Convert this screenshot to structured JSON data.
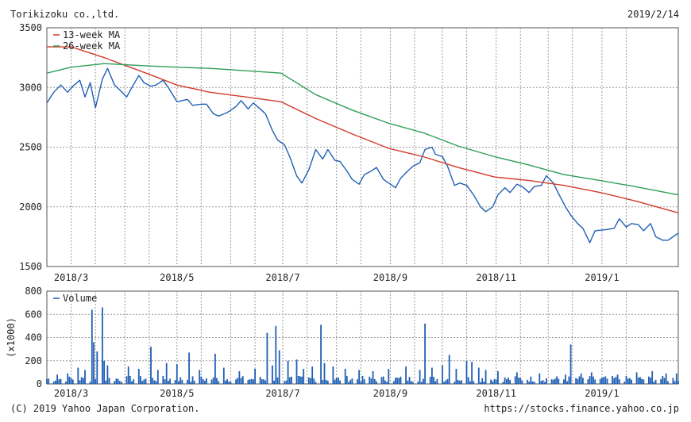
{
  "header": {
    "company": "Torikizoku co.,ltd.",
    "date": "2019/2/14"
  },
  "footer": {
    "copyright": "(C) 2019 Yahoo Japan Corporation.",
    "url": "https://stocks.finance.yahoo.co.jp"
  },
  "colors": {
    "price": "#1f5fb4",
    "ma13": "#d23a2a",
    "ma26": "#2e9e56",
    "volume": "#1f5fb4",
    "grid": "#9a9a9a",
    "frame": "#555555"
  },
  "chart_data": [
    {
      "type": "line",
      "title": "",
      "ylim": [
        1500,
        3500
      ],
      "yticks": [
        1500,
        2000,
        2500,
        3000,
        3500
      ],
      "xlim": [
        "2018-02-15",
        "2019-02-14"
      ],
      "xticks": [
        {
          "date": "2018-03-01",
          "label": "2018/3"
        },
        {
          "date": "2018-05-01",
          "label": "2018/5"
        },
        {
          "date": "2018-07-01",
          "label": "2018/7"
        },
        {
          "date": "2018-09-01",
          "label": "2018/9"
        },
        {
          "date": "2018-11-01",
          "label": "2018/11"
        },
        {
          "date": "2019-01-01",
          "label": "2019/1"
        }
      ],
      "grid": true,
      "legend": "top-left",
      "series": [
        {
          "name": "",
          "key": "price",
          "points": [
            [
              "2018-02-15",
              2870
            ],
            [
              "2018-02-19",
              2960
            ],
            [
              "2018-02-23",
              3020
            ],
            [
              "2018-02-27",
              2960
            ],
            [
              "2018-03-02",
              3010
            ],
            [
              "2018-03-06",
              3060
            ],
            [
              "2018-03-09",
              2920
            ],
            [
              "2018-03-12",
              3040
            ],
            [
              "2018-03-15",
              2830
            ],
            [
              "2018-03-19",
              3070
            ],
            [
              "2018-03-22",
              3160
            ],
            [
              "2018-03-26",
              3020
            ],
            [
              "2018-03-29",
              2980
            ],
            [
              "2018-04-02",
              2920
            ],
            [
              "2018-04-05",
              3000
            ],
            [
              "2018-04-09",
              3100
            ],
            [
              "2018-04-12",
              3040
            ],
            [
              "2018-04-16",
              3010
            ],
            [
              "2018-04-19",
              3020
            ],
            [
              "2018-04-23",
              3060
            ],
            [
              "2018-04-26",
              3000
            ],
            [
              "2018-05-01",
              2880
            ],
            [
              "2018-05-07",
              2900
            ],
            [
              "2018-05-10",
              2850
            ],
            [
              "2018-05-15",
              2860
            ],
            [
              "2018-05-18",
              2860
            ],
            [
              "2018-05-22",
              2780
            ],
            [
              "2018-05-25",
              2760
            ],
            [
              "2018-05-30",
              2790
            ],
            [
              "2018-06-04",
              2840
            ],
            [
              "2018-06-07",
              2890
            ],
            [
              "2018-06-11",
              2820
            ],
            [
              "2018-06-14",
              2870
            ],
            [
              "2018-06-18",
              2820
            ],
            [
              "2018-06-21",
              2780
            ],
            [
              "2018-06-25",
              2640
            ],
            [
              "2018-06-28",
              2560
            ],
            [
              "2018-07-02",
              2520
            ],
            [
              "2018-07-05",
              2420
            ],
            [
              "2018-07-09",
              2260
            ],
            [
              "2018-07-12",
              2200
            ],
            [
              "2018-07-16",
              2310
            ],
            [
              "2018-07-20",
              2480
            ],
            [
              "2018-07-24",
              2400
            ],
            [
              "2018-07-27",
              2480
            ],
            [
              "2018-07-31",
              2390
            ],
            [
              "2018-08-03",
              2380
            ],
            [
              "2018-08-07",
              2300
            ],
            [
              "2018-08-10",
              2230
            ],
            [
              "2018-08-14",
              2190
            ],
            [
              "2018-08-17",
              2270
            ],
            [
              "2018-08-21",
              2300
            ],
            [
              "2018-08-24",
              2330
            ],
            [
              "2018-08-28",
              2230
            ],
            [
              "2018-08-31",
              2200
            ],
            [
              "2018-09-04",
              2160
            ],
            [
              "2018-09-07",
              2240
            ],
            [
              "2018-09-11",
              2300
            ],
            [
              "2018-09-14",
              2340
            ],
            [
              "2018-09-18",
              2370
            ],
            [
              "2018-09-21",
              2480
            ],
            [
              "2018-09-25",
              2500
            ],
            [
              "2018-09-27",
              2440
            ],
            [
              "2018-10-01",
              2420
            ],
            [
              "2018-10-04",
              2340
            ],
            [
              "2018-10-08",
              2180
            ],
            [
              "2018-10-11",
              2200
            ],
            [
              "2018-10-15",
              2180
            ],
            [
              "2018-10-19",
              2100
            ],
            [
              "2018-10-23",
              2000
            ],
            [
              "2018-10-26",
              1960
            ],
            [
              "2018-10-30",
              2000
            ],
            [
              "2018-11-02",
              2100
            ],
            [
              "2018-11-06",
              2160
            ],
            [
              "2018-11-09",
              2120
            ],
            [
              "2018-11-13",
              2190
            ],
            [
              "2018-11-16",
              2170
            ],
            [
              "2018-11-20",
              2120
            ],
            [
              "2018-11-23",
              2170
            ],
            [
              "2018-11-27",
              2180
            ],
            [
              "2018-11-30",
              2260
            ],
            [
              "2018-12-04",
              2200
            ],
            [
              "2018-12-07",
              2110
            ],
            [
              "2018-12-11",
              2000
            ],
            [
              "2018-12-14",
              1930
            ],
            [
              "2018-12-18",
              1860
            ],
            [
              "2018-12-21",
              1820
            ],
            [
              "2018-12-25",
              1700
            ],
            [
              "2018-12-28",
              1800
            ],
            [
              "2019-01-04",
              1810
            ],
            [
              "2019-01-08",
              1820
            ],
            [
              "2019-01-11",
              1900
            ],
            [
              "2019-01-15",
              1830
            ],
            [
              "2019-01-18",
              1860
            ],
            [
              "2019-01-22",
              1850
            ],
            [
              "2019-01-25",
              1800
            ],
            [
              "2019-01-29",
              1860
            ],
            [
              "2019-02-01",
              1750
            ],
            [
              "2019-02-05",
              1720
            ],
            [
              "2019-02-08",
              1720
            ],
            [
              "2019-02-12",
              1760
            ],
            [
              "2019-02-14",
              1780
            ]
          ]
        },
        {
          "name": "13-week MA",
          "key": "ma13",
          "points": [
            [
              "2018-02-15",
              3340
            ],
            [
              "2018-03-01",
              3340
            ],
            [
              "2018-03-20",
              3250
            ],
            [
              "2018-04-15",
              3110
            ],
            [
              "2018-05-01",
              3020
            ],
            [
              "2018-05-20",
              2960
            ],
            [
              "2018-06-10",
              2920
            ],
            [
              "2018-06-30",
              2880
            ],
            [
              "2018-07-20",
              2740
            ],
            [
              "2018-08-10",
              2610
            ],
            [
              "2018-08-31",
              2490
            ],
            [
              "2018-09-20",
              2420
            ],
            [
              "2018-10-10",
              2330
            ],
            [
              "2018-10-31",
              2250
            ],
            [
              "2018-11-20",
              2220
            ],
            [
              "2018-12-10",
              2180
            ],
            [
              "2018-12-31",
              2120
            ],
            [
              "2019-01-20",
              2050
            ],
            [
              "2019-02-14",
              1950
            ]
          ]
        },
        {
          "name": "26-week MA",
          "key": "ma26",
          "points": [
            [
              "2018-02-15",
              3120
            ],
            [
              "2018-03-01",
              3170
            ],
            [
              "2018-03-20",
              3200
            ],
            [
              "2018-04-15",
              3180
            ],
            [
              "2018-05-01",
              3170
            ],
            [
              "2018-05-20",
              3160
            ],
            [
              "2018-06-10",
              3140
            ],
            [
              "2018-06-30",
              3120
            ],
            [
              "2018-07-20",
              2940
            ],
            [
              "2018-08-10",
              2810
            ],
            [
              "2018-08-31",
              2700
            ],
            [
              "2018-09-20",
              2620
            ],
            [
              "2018-10-10",
              2510
            ],
            [
              "2018-10-31",
              2420
            ],
            [
              "2018-11-20",
              2350
            ],
            [
              "2018-12-10",
              2270
            ],
            [
              "2018-12-31",
              2220
            ],
            [
              "2019-01-20",
              2170
            ],
            [
              "2019-02-14",
              2100
            ]
          ]
        }
      ]
    },
    {
      "type": "bar",
      "title": "",
      "ylabel": "(x1000)",
      "ylim": [
        0,
        800
      ],
      "yticks": [
        0,
        200,
        400,
        600,
        800
      ],
      "xlim": [
        "2018-02-15",
        "2019-02-14"
      ],
      "xticks": [
        {
          "date": "2018-03-01",
          "label": "2018/3"
        },
        {
          "date": "2018-05-01",
          "label": "2018/5"
        },
        {
          "date": "2018-07-01",
          "label": "2018/7"
        },
        {
          "date": "2018-09-01",
          "label": "2018/9"
        },
        {
          "date": "2018-11-01",
          "label": "2018/11"
        },
        {
          "date": "2019-01-01",
          "label": "2019/1"
        }
      ],
      "grid": true,
      "legend": "top-left",
      "series": [
        {
          "name": "Volume",
          "key": "volume",
          "baseline": 45,
          "spikes": [
            [
              "2018-02-21",
              80
            ],
            [
              "2018-02-27",
              90
            ],
            [
              "2018-03-05",
              140
            ],
            [
              "2018-03-09",
              120
            ],
            [
              "2018-03-13",
              640
            ],
            [
              "2018-03-14",
              360
            ],
            [
              "2018-03-16",
              280
            ],
            [
              "2018-03-19",
              660
            ],
            [
              "2018-03-20",
              200
            ],
            [
              "2018-03-22",
              160
            ],
            [
              "2018-04-03",
              150
            ],
            [
              "2018-04-09",
              130
            ],
            [
              "2018-04-16",
              320
            ],
            [
              "2018-04-20",
              120
            ],
            [
              "2018-04-25",
              180
            ],
            [
              "2018-05-01",
              170
            ],
            [
              "2018-05-08",
              270
            ],
            [
              "2018-05-14",
              120
            ],
            [
              "2018-05-23",
              260
            ],
            [
              "2018-05-28",
              140
            ],
            [
              "2018-06-06",
              110
            ],
            [
              "2018-06-15",
              130
            ],
            [
              "2018-06-22",
              440
            ],
            [
              "2018-06-25",
              160
            ],
            [
              "2018-06-27",
              500
            ],
            [
              "2018-06-29",
              290
            ],
            [
              "2018-07-04",
              200
            ],
            [
              "2018-07-09",
              210
            ],
            [
              "2018-07-13",
              130
            ],
            [
              "2018-07-18",
              150
            ],
            [
              "2018-07-23",
              510
            ],
            [
              "2018-07-25",
              180
            ],
            [
              "2018-07-30",
              150
            ],
            [
              "2018-08-06",
              130
            ],
            [
              "2018-08-14",
              120
            ],
            [
              "2018-08-22",
              110
            ],
            [
              "2018-08-31",
              130
            ],
            [
              "2018-09-10",
              150
            ],
            [
              "2018-09-18",
              120
            ],
            [
              "2018-09-21",
              520
            ],
            [
              "2018-09-25",
              140
            ],
            [
              "2018-10-01",
              160
            ],
            [
              "2018-10-05",
              250
            ],
            [
              "2018-10-09",
              130
            ],
            [
              "2018-10-15",
              200
            ],
            [
              "2018-10-18",
              190
            ],
            [
              "2018-10-22",
              140
            ],
            [
              "2018-10-26",
              120
            ],
            [
              "2018-11-02",
              110
            ],
            [
              "2018-11-13",
              100
            ],
            [
              "2018-11-26",
              90
            ],
            [
              "2018-12-11",
              80
            ],
            [
              "2018-12-14",
              340
            ],
            [
              "2018-12-20",
              90
            ],
            [
              "2018-12-26",
              100
            ],
            [
              "2019-01-10",
              80
            ],
            [
              "2019-01-21",
              100
            ],
            [
              "2019-01-30",
              110
            ],
            [
              "2019-02-07",
              90
            ],
            [
              "2019-02-13",
              90
            ]
          ]
        }
      ]
    }
  ]
}
